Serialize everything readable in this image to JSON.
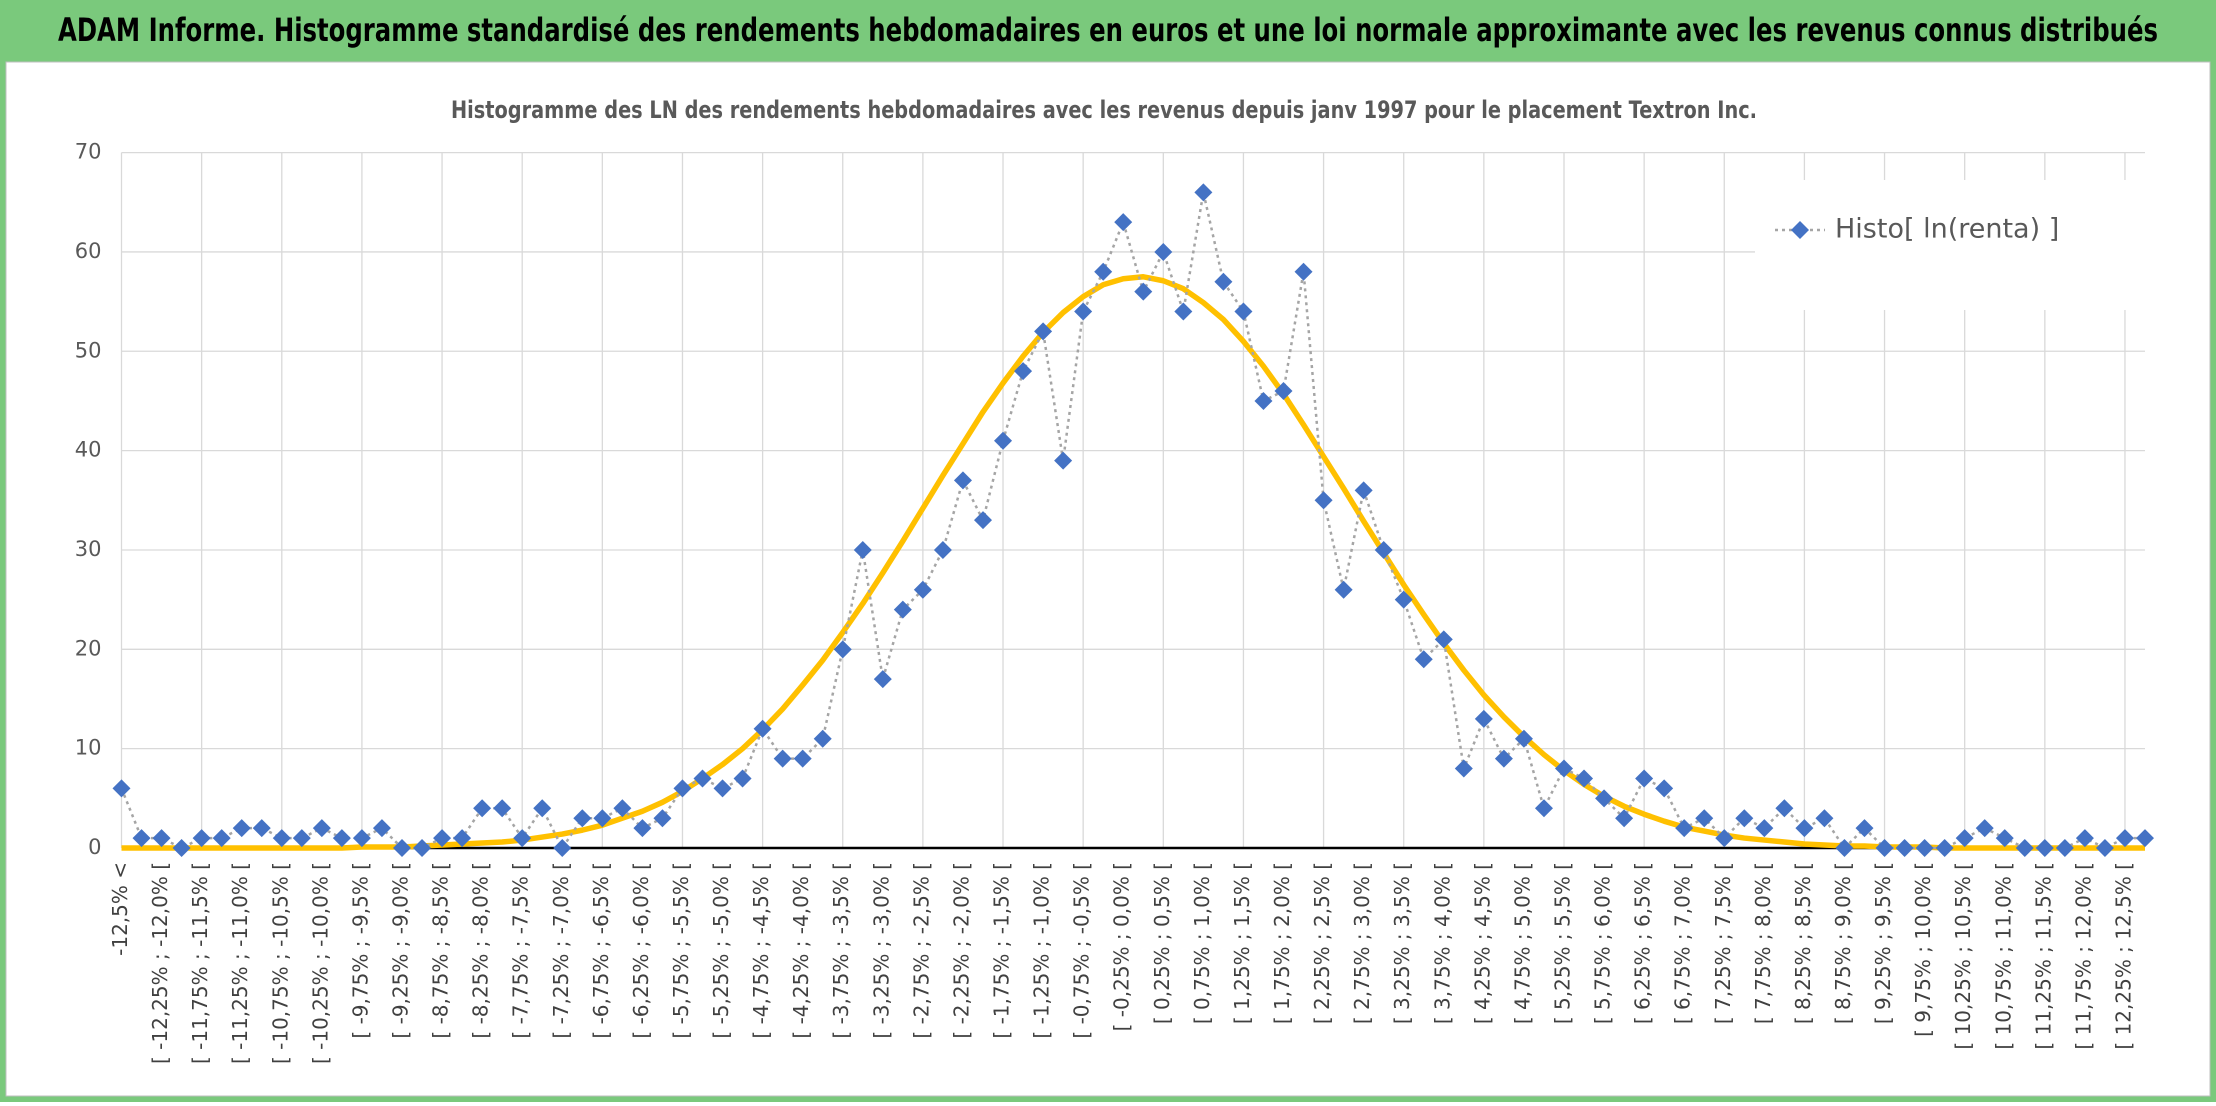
{
  "chart_data": {
    "type": "line",
    "title": "ADAM Informe. Histogramme standardisé des rendements hebdomadaires en euros et une loi normale approximante avec les revenus connus distribués",
    "subtitle": "Histogramme des LN des rendements hebdomadaires avec les revenus depuis janv 1997 pour le placement Textron Inc.",
    "categories": [
      "-12,5% <",
      null,
      "[ -12,25% ; -12,0% [",
      null,
      "[ -11,75% ; -11,5% [",
      null,
      "[ -11,25% ; -11,0% [",
      null,
      "[ -10,75% ; -10,5% [",
      null,
      "[ -10,25% ; -10,0% [",
      null,
      "[ -9,75% ; -9,5% [",
      null,
      "[ -9,25% ; -9,0% [",
      null,
      "[ -8,75% ; -8,5% [",
      null,
      "[ -8,25% ; -8,0% [",
      null,
      "[ -7,75% ; -7,5% [",
      null,
      "[ -7,25% ; -7,0% [",
      null,
      "[ -6,75% ; -6,5% [",
      null,
      "[ -6,25% ; -6,0% [",
      null,
      "[ -5,75% ; -5,5% [",
      null,
      "[ -5,25% ; -5,0% [",
      null,
      "[ -4,75% ; -4,5% [",
      null,
      "[ -4,25% ; -4,0% [",
      null,
      "[ -3,75% ; -3,5% [",
      null,
      "[ -3,25% ; -3,0% [",
      null,
      "[ -2,75% ; -2,5% [",
      null,
      "[ -2,25% ; -2,0% [",
      null,
      "[ -1,75% ; -1,5% [",
      null,
      "[ -1,25% ; -1,0% [",
      null,
      "[ -0,75% ; -0,5% [",
      null,
      "[ -0,25% ; 0,0% [",
      null,
      "[ 0,25% ; 0,5% [",
      null,
      "[ 0,75% ; 1,0% [",
      null,
      "[ 1,25% ; 1,5% [",
      null,
      "[ 1,75% ; 2,0% [",
      null,
      "[ 2,25% ; 2,5% [",
      null,
      "[ 2,75% ; 3,0% [",
      null,
      "[ 3,25% ; 3,5% [",
      null,
      "[ 3,75% ; 4,0% [",
      null,
      "[ 4,25% ; 4,5% [",
      null,
      "[ 4,75% ; 5,0% [",
      null,
      "[ 5,25% ; 5,5% [",
      null,
      "[ 5,75% ; 6,0% [",
      null,
      "[ 6,25% ; 6,5% [",
      null,
      "[ 6,75% ; 7,0% [",
      null,
      "[ 7,25% ; 7,5% [",
      null,
      "[ 7,75% ; 8,0% [",
      null,
      "[ 8,25% ; 8,5% [",
      null,
      "[ 8,75% ; 9,0% [",
      null,
      "[ 9,25% ; 9,5% [",
      null,
      "[ 9,75% ; 10,0% [",
      null,
      "[ 10,25% ; 10,5% [",
      null,
      "[ 10,75% ; 11,0% [",
      null,
      "[ 11,25% ; 11,5% [",
      null,
      "[ 11,75% ; 12,0% [",
      null,
      "[ 12,25% ; 12,5% [",
      null
    ],
    "series": [
      {
        "name": "Histo[ ln(renta) ]",
        "color": "#4472c4",
        "line_color": "#a5a5a5",
        "markers": true,
        "values": [
          6,
          1,
          1,
          0,
          1,
          1,
          2,
          2,
          1,
          1,
          2,
          1,
          1,
          2,
          0,
          0,
          1,
          1,
          4,
          4,
          1,
          4,
          0,
          3,
          3,
          4,
          2,
          3,
          6,
          7,
          6,
          7,
          12,
          9,
          9,
          11,
          20,
          30,
          17,
          24,
          26,
          30,
          37,
          33,
          41,
          48,
          52,
          39,
          54,
          58,
          63,
          56,
          60,
          54,
          66,
          57,
          54,
          45,
          46,
          58,
          35,
          26,
          36,
          30,
          25,
          19,
          21,
          8,
          13,
          9,
          11,
          4,
          8,
          7,
          5,
          3,
          7,
          6,
          2,
          3,
          1,
          3,
          2,
          4,
          2,
          3,
          0,
          2,
          0,
          0,
          0,
          0,
          1,
          2,
          1,
          0,
          0,
          0,
          1,
          0,
          1,
          1
        ]
      },
      {
        "color": "#ffc000",
        "markers": false,
        "values": [
          0.0,
          0.0,
          0.0,
          0.0,
          0.0,
          0.0,
          0.0,
          0.0,
          0.0,
          0.0,
          0.0,
          0.0,
          0.1,
          0.1,
          0.1,
          0.2,
          0.3,
          0.4,
          0.5,
          0.6,
          0.8,
          1.1,
          1.4,
          1.8,
          2.3,
          3.0,
          3.7,
          4.6,
          5.7,
          7.0,
          8.4,
          10.0,
          11.9,
          14.0,
          16.4,
          18.9,
          21.7,
          24.6,
          27.7,
          30.9,
          34.2,
          37.5,
          40.7,
          43.9,
          46.8,
          49.5,
          51.9,
          53.9,
          55.5,
          56.7,
          57.3,
          57.5,
          57.1,
          56.3,
          54.9,
          53.2,
          51.0,
          48.5,
          45.7,
          42.6,
          39.4,
          36.2,
          32.9,
          29.7,
          26.5,
          23.5,
          20.6,
          17.9,
          15.4,
          13.2,
          11.2,
          9.4,
          7.8,
          6.4,
          5.2,
          4.2,
          3.4,
          2.7,
          2.1,
          1.7,
          1.3,
          1.0,
          0.8,
          0.6,
          0.4,
          0.3,
          0.2,
          0.2,
          0.1,
          0.1,
          0.1,
          0.0,
          0.0,
          0.0,
          0.0,
          0.0,
          0.0,
          0.0,
          0.0,
          0.0,
          0.0,
          0.0
        ]
      }
    ],
    "ylim": [
      0,
      70
    ],
    "yticks": [
      0,
      10,
      20,
      30,
      40,
      50,
      60,
      70
    ],
    "grid": true,
    "legend": "top-right"
  }
}
